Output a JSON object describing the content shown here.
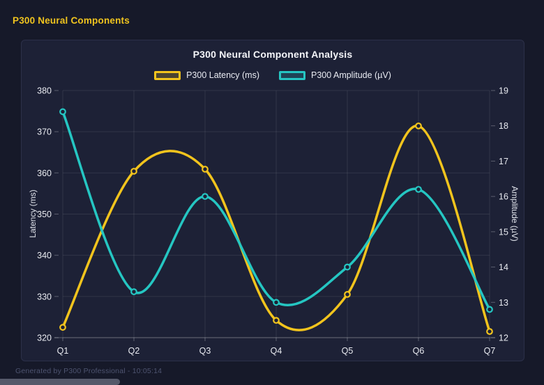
{
  "page": {
    "header_title": "P300 Neural Components",
    "footer_text": "Generated by P300 Professional - 10:05:14"
  },
  "colors": {
    "background": "#161929",
    "panel": "#1d2136",
    "panel_border": "#2c3049",
    "header_accent": "#f0c41e",
    "grid": "rgba(255,255,255,0.09)",
    "axis_line": "rgba(255,255,255,0.28)",
    "tick_text": "#e8eaf0",
    "latency": "#f2c41d",
    "amplitude": "#25c6c2"
  },
  "chart_data": {
    "type": "line",
    "title": "P300 Neural Component Analysis",
    "categories": [
      "Q1",
      "Q2",
      "Q3",
      "Q4",
      "Q5",
      "Q6",
      "Q7"
    ],
    "series": [
      {
        "name": "P300 Latency (ms)",
        "axis": "left",
        "color": "#f2c41d",
        "values": [
          322.5,
          360.4,
          360.9,
          324.2,
          330.5,
          371.4,
          321.5
        ]
      },
      {
        "name": "P300 Amplitude (µV)",
        "axis": "right",
        "color": "#25c6c2",
        "values": [
          18.4,
          13.3,
          16.0,
          13.0,
          14.0,
          16.2,
          12.8
        ]
      }
    ],
    "left_axis": {
      "label": "Latency (ms)",
      "min": 320,
      "max": 380,
      "step": 10
    },
    "right_axis": {
      "label": "Amplitude (µV)",
      "min": 12,
      "max": 19,
      "step": 1
    },
    "grid": true,
    "smooth": true,
    "legend_position": "top"
  }
}
